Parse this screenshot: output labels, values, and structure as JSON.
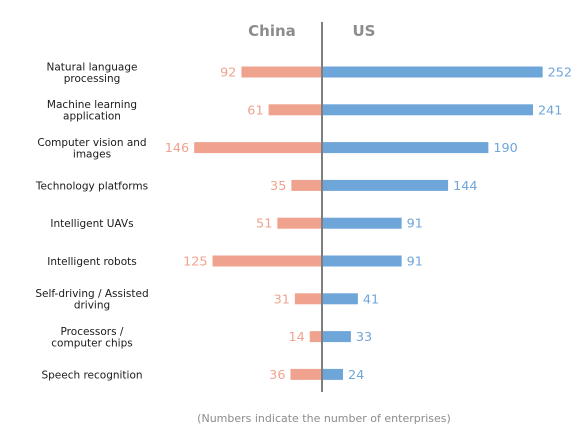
{
  "chart_data": {
    "type": "bar",
    "orientation": "horizontal-diverging",
    "categories": [
      "Natural language processing",
      "Machine learning application",
      "Computer vision and images",
      "Technology platforms",
      "Intelligent UAVs",
      "Intelligent robots",
      "Self-driving / Assisted driving",
      "Processors / computer chips",
      "Speech recognition"
    ],
    "category_lines": [
      [
        "Natural language",
        "processing"
      ],
      [
        "Machine learning",
        "application"
      ],
      [
        "Computer vision and",
        "images"
      ],
      [
        "Technology platforms"
      ],
      [
        "Intelligent UAVs"
      ],
      [
        "Intelligent robots"
      ],
      [
        "Self-driving / Assisted",
        "driving"
      ],
      [
        "Processors /",
        "computer chips"
      ],
      [
        "Speech recognition"
      ]
    ],
    "series": [
      {
        "name": "China",
        "direction": "left",
        "color": "#EFA38F",
        "values": [
          92,
          61,
          146,
          35,
          51,
          125,
          31,
          14,
          36
        ]
      },
      {
        "name": "US",
        "direction": "right",
        "color": "#6FA6DA",
        "values": [
          252,
          241,
          190,
          144,
          91,
          91,
          41,
          33,
          24
        ]
      }
    ],
    "footnote": "(Numbers indicate the number of enterprises)",
    "axis_color": "#7E7E7E",
    "title_color": "#8C8C8C",
    "label_color": "#1A1A1A"
  }
}
